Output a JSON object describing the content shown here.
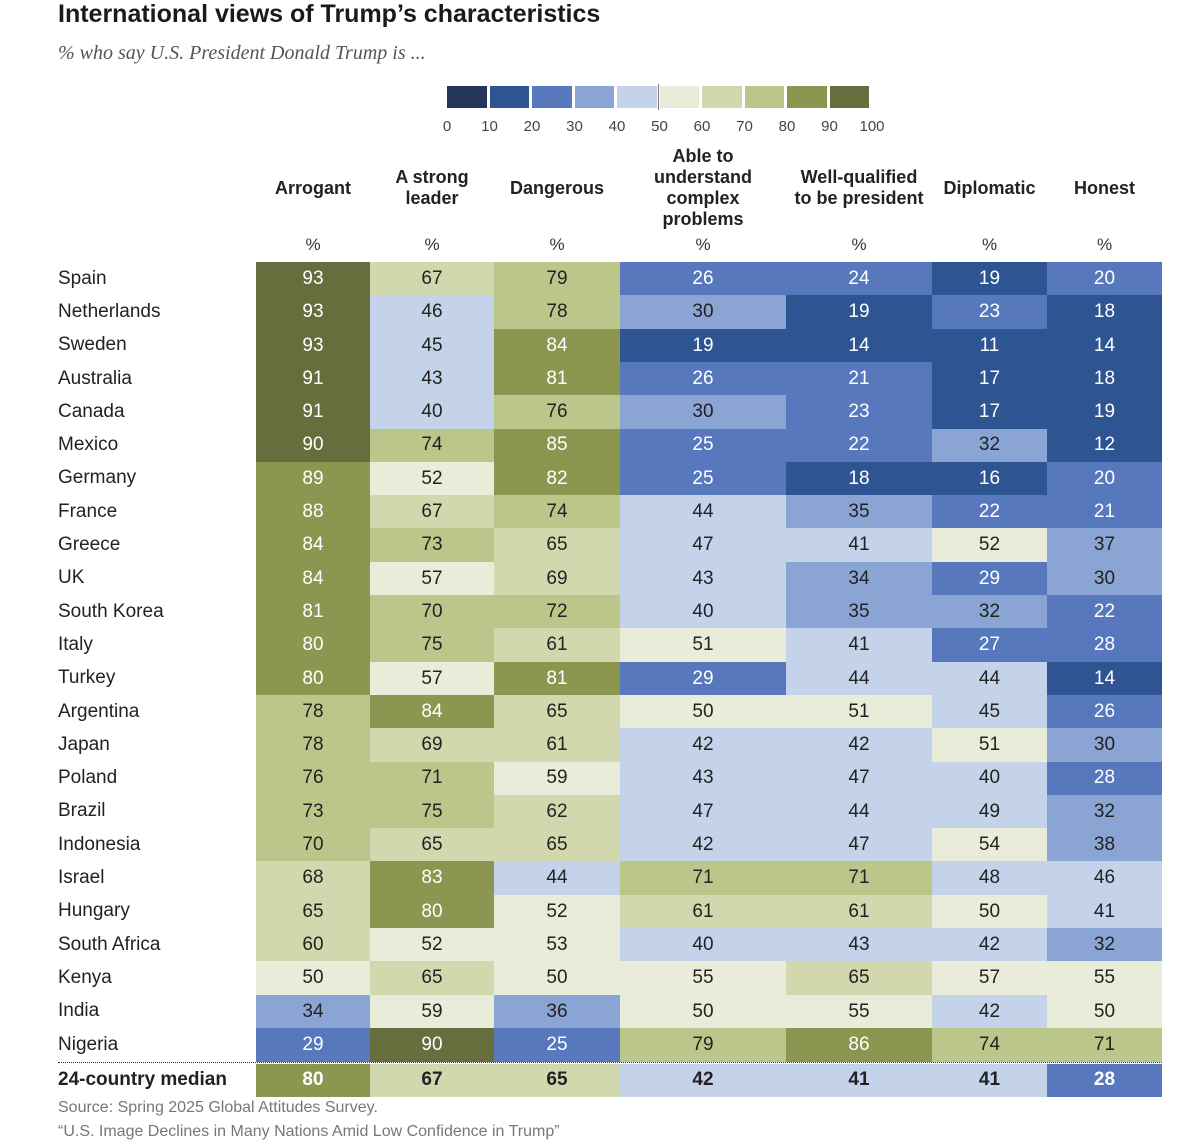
{
  "title": "International views of Trump’s characteristics",
  "subtitle": "% who say U.S. President Donald Trump is ...",
  "legend": {
    "colors": [
      "#24345a",
      "#2e5591",
      "#5878bd",
      "#8aa5d3",
      "#c5d3ea",
      "#e8ecd8",
      "#d2d8ad",
      "#bbc78a",
      "#8d9650",
      "#676d3c"
    ],
    "ticks": [
      "0",
      "10",
      "20",
      "30",
      "40",
      "50",
      "60",
      "70",
      "80",
      "90",
      "100"
    ]
  },
  "footer": {
    "source": "Source: Spring 2025 Global Attitudes Survey.",
    "report": "“U.S. Image Declines in Many Nations Amid Low Confidence in Trump”"
  },
  "chart_data": {
    "type": "heatmap",
    "title": "International views of Trump’s characteristics",
    "subtitle": "% who say U.S. President Donald Trump is ...",
    "columns": [
      "Arrogant",
      "A strong leader",
      "Dangerous",
      "Able to understand complex problems",
      "Well-qualified to be president",
      "Diplomatic",
      "Honest"
    ],
    "column_labels": [
      [
        "Arrogant"
      ],
      [
        "A strong",
        "leader"
      ],
      [
        "Dangerous"
      ],
      [
        "Able to",
        "understand",
        "complex",
        "problems"
      ],
      [
        "Well-qualified",
        "to be president"
      ],
      [
        "Diplomatic"
      ],
      [
        "Honest"
      ]
    ],
    "unit": "%",
    "rows": [
      {
        "country": "Spain",
        "values": [
          93,
          67,
          79,
          26,
          24,
          19,
          20
        ]
      },
      {
        "country": "Netherlands",
        "values": [
          93,
          46,
          78,
          30,
          19,
          23,
          18
        ]
      },
      {
        "country": "Sweden",
        "values": [
          93,
          45,
          84,
          19,
          14,
          11,
          14
        ]
      },
      {
        "country": "Australia",
        "values": [
          91,
          43,
          81,
          26,
          21,
          17,
          18
        ]
      },
      {
        "country": "Canada",
        "values": [
          91,
          40,
          76,
          30,
          23,
          17,
          19
        ]
      },
      {
        "country": "Mexico",
        "values": [
          90,
          74,
          85,
          25,
          22,
          32,
          12
        ]
      },
      {
        "country": "Germany",
        "values": [
          89,
          52,
          82,
          25,
          18,
          16,
          20
        ]
      },
      {
        "country": "France",
        "values": [
          88,
          67,
          74,
          44,
          35,
          22,
          21
        ]
      },
      {
        "country": "Greece",
        "values": [
          84,
          73,
          65,
          47,
          41,
          52,
          37
        ]
      },
      {
        "country": "UK",
        "values": [
          84,
          57,
          69,
          43,
          34,
          29,
          30
        ]
      },
      {
        "country": "South Korea",
        "values": [
          81,
          70,
          72,
          40,
          35,
          32,
          22
        ]
      },
      {
        "country": "Italy",
        "values": [
          80,
          75,
          61,
          51,
          41,
          27,
          28
        ]
      },
      {
        "country": "Turkey",
        "values": [
          80,
          57,
          81,
          29,
          44,
          44,
          14
        ]
      },
      {
        "country": "Argentina",
        "values": [
          78,
          84,
          65,
          50,
          51,
          45,
          26
        ]
      },
      {
        "country": "Japan",
        "values": [
          78,
          69,
          61,
          42,
          42,
          51,
          30
        ]
      },
      {
        "country": "Poland",
        "values": [
          76,
          71,
          59,
          43,
          47,
          40,
          28
        ]
      },
      {
        "country": "Brazil",
        "values": [
          73,
          75,
          62,
          47,
          44,
          49,
          32
        ]
      },
      {
        "country": "Indonesia",
        "values": [
          70,
          65,
          65,
          42,
          47,
          54,
          38
        ]
      },
      {
        "country": "Israel",
        "values": [
          68,
          83,
          44,
          71,
          71,
          48,
          46
        ]
      },
      {
        "country": "Hungary",
        "values": [
          65,
          80,
          52,
          61,
          61,
          50,
          41
        ]
      },
      {
        "country": "South Africa",
        "values": [
          60,
          52,
          53,
          40,
          43,
          42,
          32
        ]
      },
      {
        "country": "Kenya",
        "values": [
          50,
          65,
          50,
          55,
          65,
          57,
          55
        ]
      },
      {
        "country": "India",
        "values": [
          34,
          59,
          36,
          50,
          55,
          42,
          50
        ]
      },
      {
        "country": "Nigeria",
        "values": [
          29,
          90,
          25,
          79,
          86,
          74,
          71
        ]
      }
    ],
    "median": {
      "country": "24-country median",
      "values": [
        80,
        67,
        65,
        42,
        41,
        41,
        28
      ]
    },
    "color_scale": {
      "min": 0,
      "max": 100,
      "midpoint": 50
    }
  }
}
